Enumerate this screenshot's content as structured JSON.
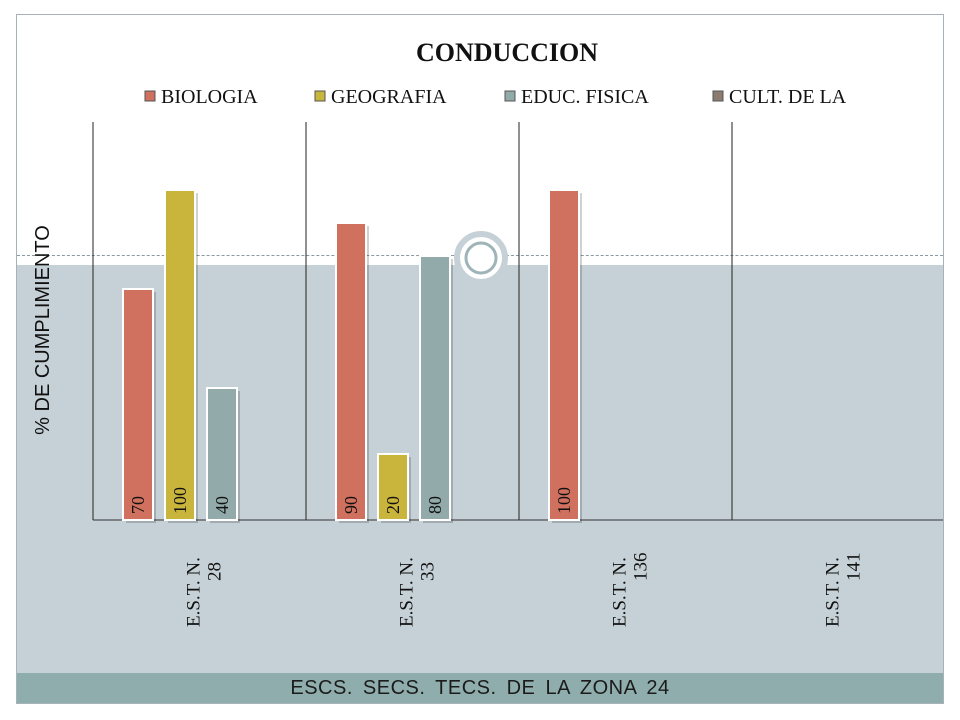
{
  "chart_data": {
    "type": "bar",
    "title": "CONDUCCION",
    "ylabel": "% DE CUMPLIMIENTO",
    "xlabel": "ESCS. SECS. TECS.  DE  LA  ZONA  24",
    "ylim": [
      0,
      100
    ],
    "legend_position": "top",
    "categories": [
      [
        "E.S.T. N.",
        "28"
      ],
      [
        "E.S.T. N.",
        "33"
      ],
      [
        "E.S.T. N.",
        "136"
      ],
      [
        "E.S.T. N.",
        "141"
      ]
    ],
    "series": [
      {
        "name": "BIOLOGIA",
        "color": "#d0705e",
        "values": [
          70,
          90,
          100,
          null
        ]
      },
      {
        "name": "GEOGRAFIA",
        "color": "#c9b53c",
        "values": [
          100,
          20,
          null,
          null
        ]
      },
      {
        "name": "EDUC. FISICA",
        "color": "#93aaaa",
        "values": [
          40,
          80,
          null,
          null
        ]
      },
      {
        "name": "CULT. DE LA",
        "color": "#8c7b70",
        "values": [
          null,
          null,
          null,
          null
        ]
      }
    ]
  }
}
